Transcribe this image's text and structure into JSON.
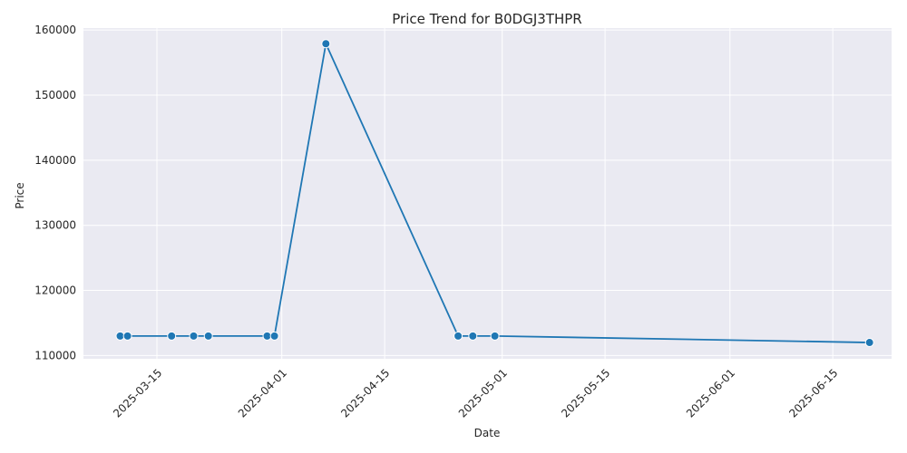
{
  "chart_data": {
    "type": "line",
    "title": "Price Trend for B0DGJ3THPR",
    "xlabel": "Date",
    "ylabel": "Price",
    "x_ticks": [
      "2025-03-15",
      "2025-04-01",
      "2025-04-15",
      "2025-05-01",
      "2025-05-15",
      "2025-06-01",
      "2025-06-15"
    ],
    "y_ticks": [
      110000,
      120000,
      130000,
      140000,
      150000,
      160000
    ],
    "xlim": [
      "2025-03-05",
      "2025-06-23"
    ],
    "ylim": [
      109500,
      160300
    ],
    "grid": true,
    "series": [
      {
        "points": [
          {
            "x": "2025-03-10",
            "y": 112999
          },
          {
            "x": "2025-03-11",
            "y": 112999
          },
          {
            "x": "2025-03-17",
            "y": 112999
          },
          {
            "x": "2025-03-20",
            "y": 112999
          },
          {
            "x": "2025-03-22",
            "y": 112999
          },
          {
            "x": "2025-03-30",
            "y": 112999
          },
          {
            "x": "2025-03-31",
            "y": 112999
          },
          {
            "x": "2025-04-07",
            "y": 157899
          },
          {
            "x": "2025-04-25",
            "y": 112999
          },
          {
            "x": "2025-04-27",
            "y": 112999
          },
          {
            "x": "2025-04-30",
            "y": 112999
          },
          {
            "x": "2025-06-20",
            "y": 111999
          }
        ]
      }
    ],
    "colors": {
      "line": "#1f77b4",
      "plot_background": "#eaeaf2",
      "grid": "#ffffff"
    }
  }
}
